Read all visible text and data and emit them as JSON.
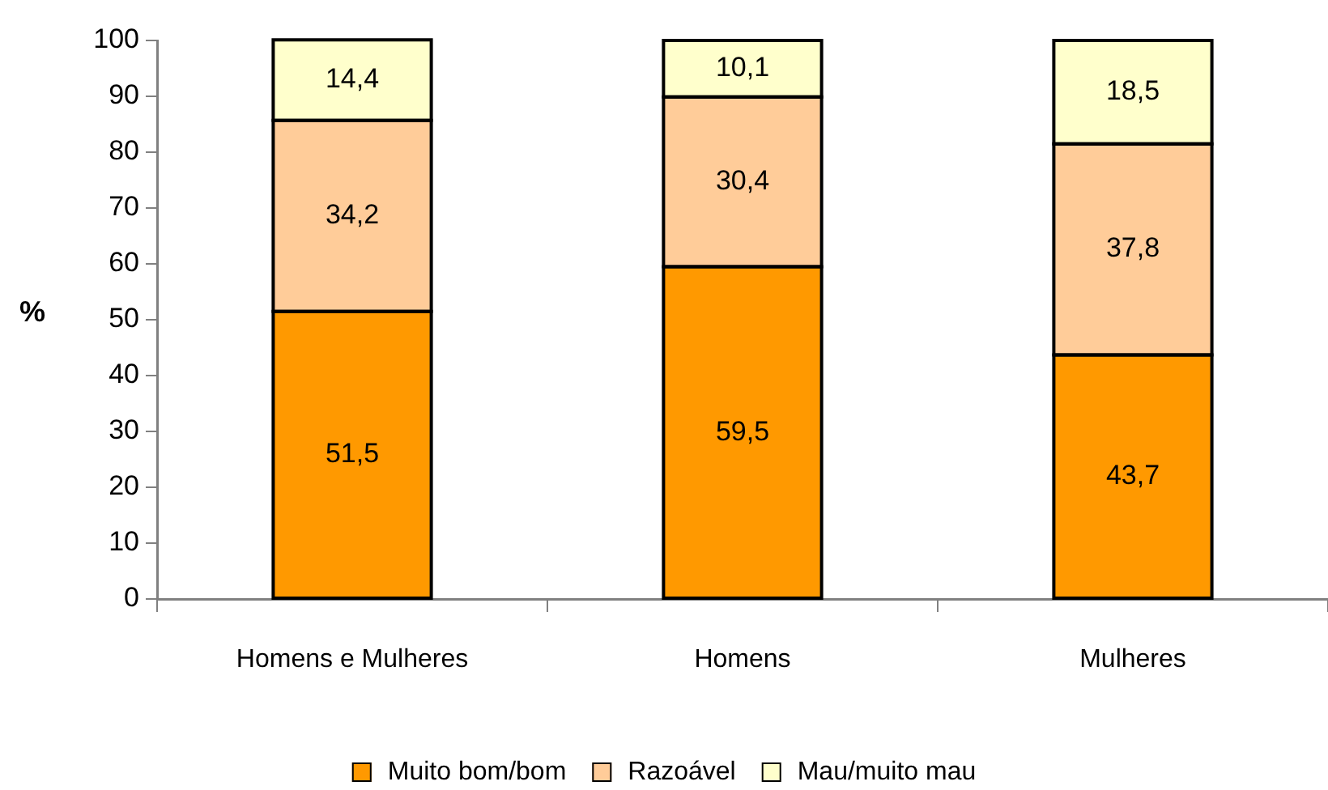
{
  "chart_data": {
    "type": "bar",
    "stacked": true,
    "ylabel": "%",
    "legend": "bottom",
    "categories": [
      "Homens e Mulheres",
      "Homens",
      "Mulheres"
    ],
    "ylim": [
      0,
      100
    ],
    "yticks": [
      0,
      10,
      20,
      30,
      40,
      50,
      60,
      70,
      80,
      90,
      100
    ],
    "series": [
      {
        "name": "Muito bom/bom",
        "color": "#ff9900",
        "values": [
          51.5,
          59.5,
          43.7
        ],
        "value_labels": [
          "51,5",
          "59,5",
          "43,7"
        ]
      },
      {
        "name": "Razoável",
        "color": "#ffcc99",
        "values": [
          34.2,
          30.4,
          37.8
        ],
        "value_labels": [
          "34,2",
          "30,4",
          "37,8"
        ]
      },
      {
        "name": "Mau/muito mau",
        "color": "#ffffcc",
        "values": [
          14.4,
          10.1,
          18.5
        ],
        "value_labels": [
          "14,4",
          "10,1",
          "18,5"
        ]
      }
    ]
  }
}
